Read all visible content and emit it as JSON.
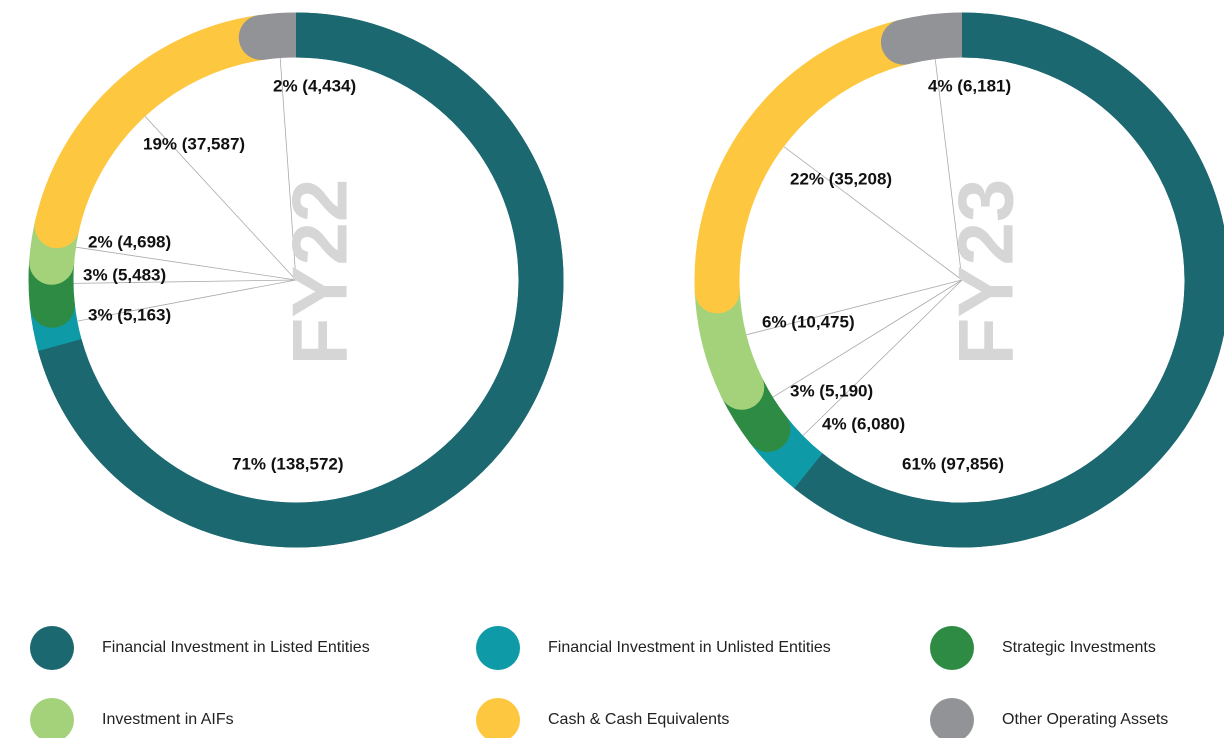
{
  "chart_data": [
    {
      "type": "pie",
      "title": "FY22",
      "categories": [
        "Financial Investment in Listed Entities",
        "Financial Investment in Unlisted Entities",
        "Strategic Investments",
        "Investment in AIFs",
        "Cash & Cash Equivalents",
        "Other Operating Assets"
      ],
      "colors": [
        "#1c6870",
        "#0e9aa7",
        "#2e8b43",
        "#a3d27a",
        "#fdc840",
        "#929396"
      ],
      "values": [
        138572,
        5163,
        5483,
        4698,
        37587,
        4434
      ],
      "value_labels": [
        "71% (138,572)",
        "3% (5,163)",
        "3% (5,483)",
        "2% (4,698)",
        "19% (37,587)",
        "2% (4,434)"
      ]
    },
    {
      "type": "pie",
      "title": "FY23",
      "values": [
        97856,
        6080,
        5190,
        10475,
        35208,
        6181
      ],
      "value_labels": [
        "61% (97,856)",
        "4% (6,080)",
        "3% (5,190)",
        "6% (10,475)",
        "22% (35,208)",
        "4% (6,181)"
      ]
    }
  ]
}
